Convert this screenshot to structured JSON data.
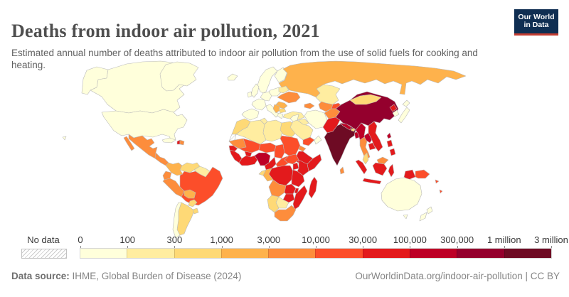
{
  "header": {
    "title": "Deaths from indoor air pollution, 2021",
    "subtitle": "Estimated annual number of deaths attributed to indoor air pollution from the use of solid fuels for cooking and heating.",
    "logo": {
      "line1": "Our World",
      "line2": "in Data",
      "navy": "#0f2e52",
      "red": "#c23c31"
    }
  },
  "legend": {
    "no_data_label": "No data",
    "tick_labels": [
      "0",
      "100",
      "300",
      "1,000",
      "3,000",
      "10,000",
      "30,000",
      "100,000",
      "300,000",
      "1 million",
      "3 million"
    ],
    "colors": [
      "#FFFFDB",
      "#FFEDA0",
      "#FED976",
      "#FEB24C",
      "#FD8D3C",
      "#FC4E2A",
      "#E31A1C",
      "#BD0026",
      "#94002D",
      "#6E0B24"
    ]
  },
  "footer": {
    "source_label": "Data source:",
    "source_text": " IHME, Global Burden of Disease (2024)",
    "right_text": "OurWorldinData.org/indoor-air-pollution | CC BY"
  },
  "chart_data": {
    "type": "choropleth",
    "title": "Deaths from indoor air pollution, 2021",
    "year": 2021,
    "unit": "deaths attributed to indoor air pollution (annual, estimated)",
    "legend_position": "bottom",
    "bin_ranges": [
      "0-100",
      "100-300",
      "300-1,000",
      "1,000-3,000",
      "3,000-10,000",
      "10,000-30,000",
      "30,000-100,000",
      "100,000-300,000",
      "300,000-1 million",
      "1 million-3 million"
    ],
    "no_data": [
      "western-sahara"
    ],
    "countries": [
      {
        "id": "canada",
        "name": "Canada",
        "bin": 0
      },
      {
        "id": "usa",
        "name": "United States",
        "bin": 0
      },
      {
        "id": "greenland",
        "name": "Greenland",
        "bin": 0
      },
      {
        "id": "iceland",
        "name": "Iceland",
        "bin": 0
      },
      {
        "id": "mexico",
        "name": "Mexico",
        "bin": 4
      },
      {
        "id": "central-america",
        "name": "Central America",
        "bin": 4
      },
      {
        "id": "cuba",
        "name": "Cuba",
        "bin": 0
      },
      {
        "id": "haiti",
        "name": "Haiti",
        "bin": 6
      },
      {
        "id": "dominican-republic",
        "name": "Dominican Republic",
        "bin": 4
      },
      {
        "id": "colombia",
        "name": "Colombia",
        "bin": 3
      },
      {
        "id": "venezuela",
        "name": "Venezuela",
        "bin": 2
      },
      {
        "id": "guyanas",
        "name": "Guyana/Suriname",
        "bin": 1
      },
      {
        "id": "ecuador",
        "name": "Ecuador",
        "bin": 4
      },
      {
        "id": "peru",
        "name": "Peru",
        "bin": 4
      },
      {
        "id": "brazil",
        "name": "Brazil",
        "bin": 5
      },
      {
        "id": "bolivia",
        "name": "Bolivia",
        "bin": 3
      },
      {
        "id": "paraguay",
        "name": "Paraguay",
        "bin": 2
      },
      {
        "id": "argentina",
        "name": "Argentina",
        "bin": 2
      },
      {
        "id": "uruguay",
        "name": "Uruguay",
        "bin": 2
      },
      {
        "id": "chile",
        "name": "Chile",
        "bin": 0
      },
      {
        "id": "uk",
        "name": "United Kingdom",
        "bin": 0
      },
      {
        "id": "ireland",
        "name": "Ireland",
        "bin": 0
      },
      {
        "id": "france",
        "name": "France",
        "bin": 0
      },
      {
        "id": "spain",
        "name": "Spain",
        "bin": 0
      },
      {
        "id": "germany",
        "name": "Germany",
        "bin": 0
      },
      {
        "id": "italy",
        "name": "Italy",
        "bin": 0
      },
      {
        "id": "norway-sweden",
        "name": "Norway/Sweden",
        "bin": 0
      },
      {
        "id": "finland",
        "name": "Finland",
        "bin": 0
      },
      {
        "id": "poland",
        "name": "Poland",
        "bin": 0
      },
      {
        "id": "belarus",
        "name": "Belarus",
        "bin": 1
      },
      {
        "id": "ukraine",
        "name": "Ukraine",
        "bin": 4
      },
      {
        "id": "romania",
        "name": "Romania",
        "bin": 3
      },
      {
        "id": "balkans",
        "name": "Serbia/Balkans",
        "bin": 3
      },
      {
        "id": "bulgaria",
        "name": "Bulgaria",
        "bin": 2
      },
      {
        "id": "greece",
        "name": "Greece",
        "bin": 0
      },
      {
        "id": "turkey",
        "name": "Turkey",
        "bin": 1
      },
      {
        "id": "morocco",
        "name": "Morocco",
        "bin": 2
      },
      {
        "id": "western-sahara",
        "name": "Western Sahara",
        "bin": null
      },
      {
        "id": "algeria",
        "name": "Algeria",
        "bin": 1
      },
      {
        "id": "tunisia",
        "name": "Tunisia",
        "bin": 1
      },
      {
        "id": "libya",
        "name": "Libya",
        "bin": 1
      },
      {
        "id": "egypt",
        "name": "Egypt",
        "bin": 2
      },
      {
        "id": "mauritania",
        "name": "Mauritania",
        "bin": 4
      },
      {
        "id": "senegal",
        "name": "Senegal",
        "bin": 6
      },
      {
        "id": "guinea-coast",
        "name": "Guinea/Sierra Leone/Liberia",
        "bin": 6
      },
      {
        "id": "mali",
        "name": "Mali",
        "bin": 5
      },
      {
        "id": "burkina-faso",
        "name": "Burkina Faso",
        "bin": 6
      },
      {
        "id": "ivory-ghana",
        "name": "Côte d'Ivoire/Ghana/Benin",
        "bin": 6
      },
      {
        "id": "niger",
        "name": "Niger",
        "bin": 5
      },
      {
        "id": "nigeria",
        "name": "Nigeria",
        "bin": 7
      },
      {
        "id": "chad",
        "name": "Chad",
        "bin": 5
      },
      {
        "id": "sudan",
        "name": "Sudan",
        "bin": 5
      },
      {
        "id": "eritrea",
        "name": "Eritrea",
        "bin": 4
      },
      {
        "id": "ethiopia",
        "name": "Ethiopia",
        "bin": 6
      },
      {
        "id": "somalia",
        "name": "Somalia",
        "bin": 6
      },
      {
        "id": "cameroon",
        "name": "Cameroon",
        "bin": 6
      },
      {
        "id": "central-african-republic",
        "name": "Central African Republic",
        "bin": 5
      },
      {
        "id": "south-sudan",
        "name": "South Sudan",
        "bin": 5
      },
      {
        "id": "drc",
        "name": "Democratic Republic of Congo",
        "bin": 6
      },
      {
        "id": "uganda",
        "name": "Uganda",
        "bin": 6
      },
      {
        "id": "kenya",
        "name": "Kenya",
        "bin": 6
      },
      {
        "id": "tanzania",
        "name": "Tanzania",
        "bin": 6
      },
      {
        "id": "gabon",
        "name": "Gabon",
        "bin": 2
      },
      {
        "id": "congo",
        "name": "Congo",
        "bin": 3
      },
      {
        "id": "angola",
        "name": "Angola",
        "bin": 4
      },
      {
        "id": "zambia",
        "name": "Zambia",
        "bin": 6
      },
      {
        "id": "malawi",
        "name": "Malawi",
        "bin": 6
      },
      {
        "id": "mozambique",
        "name": "Mozambique",
        "bin": 6
      },
      {
        "id": "zimbabwe",
        "name": "Zimbabwe",
        "bin": 6
      },
      {
        "id": "botswana",
        "name": "Botswana",
        "bin": 1
      },
      {
        "id": "namibia",
        "name": "Namibia",
        "bin": 2
      },
      {
        "id": "south-africa",
        "name": "South Africa",
        "bin": 4
      },
      {
        "id": "madagascar",
        "name": "Madagascar",
        "bin": 6
      },
      {
        "id": "russia",
        "name": "Russia",
        "bin": 3
      },
      {
        "id": "kazakhstan",
        "name": "Kazakhstan",
        "bin": 1
      },
      {
        "id": "uzbekistan-turkmenistan",
        "name": "Uzbekistan/Turkmenistan",
        "bin": 4
      },
      {
        "id": "kyrgyz-tajik",
        "name": "Kyrgyzstan/Tajikistan",
        "bin": 5
      },
      {
        "id": "caucasus",
        "name": "Caucasus",
        "bin": 4
      },
      {
        "id": "iran",
        "name": "Iran",
        "bin": 0
      },
      {
        "id": "iraq",
        "name": "Iraq",
        "bin": 1
      },
      {
        "id": "syria",
        "name": "Syria",
        "bin": 0
      },
      {
        "id": "saudi-arabia",
        "name": "Saudi Arabia",
        "bin": 1
      },
      {
        "id": "yemen",
        "name": "Yemen",
        "bin": 5
      },
      {
        "id": "oman",
        "name": "Oman",
        "bin": 0
      },
      {
        "id": "afghanistan",
        "name": "Afghanistan",
        "bin": 4
      },
      {
        "id": "pakistan",
        "name": "Pakistan",
        "bin": 6
      },
      {
        "id": "india",
        "name": "India",
        "bin": 9
      },
      {
        "id": "nepal",
        "name": "Nepal",
        "bin": 7
      },
      {
        "id": "bhutan",
        "name": "Bhutan",
        "bin": 2
      },
      {
        "id": "bangladesh",
        "name": "Bangladesh",
        "bin": 7
      },
      {
        "id": "sri-lanka",
        "name": "Sri Lanka",
        "bin": 4
      },
      {
        "id": "china",
        "name": "China",
        "bin": 8
      },
      {
        "id": "mongolia",
        "name": "Mongolia",
        "bin": 2
      },
      {
        "id": "north-korea",
        "name": "North Korea",
        "bin": 6
      },
      {
        "id": "south-korea",
        "name": "South Korea",
        "bin": 0
      },
      {
        "id": "japan",
        "name": "Japan",
        "bin": 0
      },
      {
        "id": "taiwan",
        "name": "Taiwan",
        "bin": 7
      },
      {
        "id": "myanmar",
        "name": "Myanmar",
        "bin": 7
      },
      {
        "id": "thailand",
        "name": "Thailand",
        "bin": 4
      },
      {
        "id": "laos",
        "name": "Laos",
        "bin": 7
      },
      {
        "id": "vietnam",
        "name": "Vietnam",
        "bin": 6
      },
      {
        "id": "cambodia",
        "name": "Cambodia",
        "bin": 6
      },
      {
        "id": "malaysia",
        "name": "Malaysia",
        "bin": 2
      },
      {
        "id": "east-malaysia",
        "name": "East Malaysia",
        "bin": 4
      },
      {
        "id": "indonesia",
        "name": "Indonesia",
        "bin": 6
      },
      {
        "id": "philippines",
        "name": "Philippines",
        "bin": 6
      },
      {
        "id": "papua-new-guinea",
        "name": "Papua New Guinea",
        "bin": 5
      },
      {
        "id": "solomon-islands",
        "name": "Solomon Islands",
        "bin": 5
      },
      {
        "id": "vanuatu",
        "name": "Vanuatu",
        "bin": 5
      },
      {
        "id": "australia",
        "name": "Australia",
        "bin": 0
      },
      {
        "id": "new-zealand",
        "name": "New Zealand",
        "bin": 0
      }
    ]
  }
}
